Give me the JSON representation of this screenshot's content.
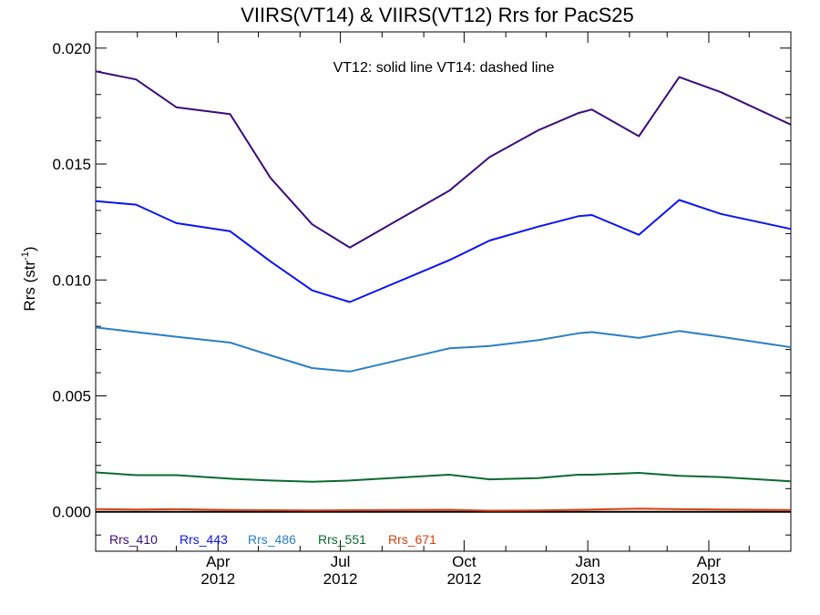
{
  "chart_data": {
    "type": "line",
    "title": "VIIRS(VT14) & VIIRS(VT12)  Rrs for PacS25",
    "annotation": "VT12: solid line   VT14: dashed line",
    "ylabel_main": "Rrs (str",
    "ylabel_sup": "-1",
    "ylabel_tail": ")",
    "ylim": [
      -0.0017,
      0.0207
    ],
    "yticks": [
      0.0,
      0.005,
      0.01,
      0.015,
      0.02
    ],
    "ytick_labels": [
      "0.000",
      "0.005",
      "0.010",
      "0.015",
      "0.020"
    ],
    "xlim": [
      "2012-01-01",
      "2013-06-01"
    ],
    "xticks": [
      {
        "date": "2012-04-01",
        "month": "Apr",
        "year": "2012"
      },
      {
        "date": "2012-07-01",
        "month": "Jul",
        "year": "2012"
      },
      {
        "date": "2012-10-01",
        "month": "Oct",
        "year": "2012"
      },
      {
        "date": "2013-01-01",
        "month": "Jan",
        "year": "2013"
      },
      {
        "date": "2013-04-01",
        "month": "Apr",
        "year": "2013"
      }
    ],
    "x": [
      "2012-01-01",
      "2012-01-31",
      "2012-03-01",
      "2012-04-10",
      "2012-05-10",
      "2012-06-10",
      "2012-07-08",
      "2012-09-20",
      "2012-10-20",
      "2012-11-25",
      "2012-12-25",
      "2013-01-04",
      "2013-02-08",
      "2013-03-10",
      "2013-04-10",
      "2013-06-01"
    ],
    "series": [
      {
        "name": "Rrs_410",
        "color": "#3a0c7e",
        "values": [
          0.019,
          0.01865,
          0.01745,
          0.01715,
          0.0144,
          0.0124,
          0.0114,
          0.01385,
          0.0153,
          0.01645,
          0.0172,
          0.01735,
          0.0162,
          0.01875,
          0.0181,
          0.0167
        ]
      },
      {
        "name": "Rrs_443",
        "color": "#0a14f0",
        "values": [
          0.0134,
          0.01325,
          0.01245,
          0.0121,
          0.0108,
          0.00955,
          0.00905,
          0.01085,
          0.0117,
          0.0123,
          0.01275,
          0.0128,
          0.01195,
          0.01345,
          0.01285,
          0.0122
        ]
      },
      {
        "name": "Rrs_486",
        "color": "#2a7fc4",
        "values": [
          0.00795,
          0.00775,
          0.00755,
          0.0073,
          0.00675,
          0.0062,
          0.00605,
          0.00705,
          0.00715,
          0.0074,
          0.0077,
          0.00775,
          0.0075,
          0.0078,
          0.00755,
          0.0071
        ]
      },
      {
        "name": "Rrs_551",
        "color": "#0a6a30",
        "values": [
          0.0017,
          0.00158,
          0.00158,
          0.00143,
          0.00135,
          0.0013,
          0.00135,
          0.0016,
          0.0014,
          0.00145,
          0.0016,
          0.0016,
          0.00168,
          0.00155,
          0.0015,
          0.00132
        ]
      },
      {
        "name": "Rrs_671",
        "color": "#d94010",
        "values": [
          0.00012,
          0.0001,
          0.00011,
          8e-05,
          7e-05,
          6e-05,
          7e-05,
          9e-05,
          5e-05,
          6e-05,
          9e-05,
          0.0001,
          0.00014,
          0.00011,
          0.0001,
          8e-05
        ]
      }
    ],
    "zero_line_color": "#000000",
    "grid": false,
    "legend_position": "bottom-left inside plot"
  }
}
